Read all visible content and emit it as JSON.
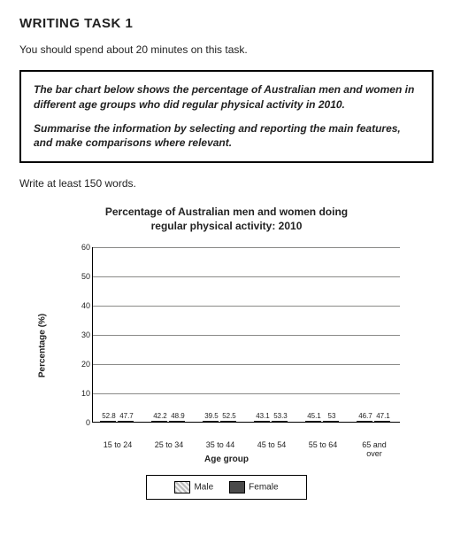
{
  "title": "WRITING TASK 1",
  "time_instruction": "You should spend about 20 minutes on this task.",
  "prompt_box": {
    "p1": "The bar chart below shows the percentage of Australian men and women in different age groups who did regular physical activity in 2010.",
    "p2": "Summarise the information by selecting and reporting the main features, and make comparisons where relevant."
  },
  "word_count": "Write at least 150 words.",
  "chart": {
    "type": "bar",
    "title_line1": "Percentage of Australian men and women doing",
    "title_line2": "regular physical activity: 2010",
    "y_axis_label": "Percentage (%)",
    "x_axis_label": "Age group",
    "ylim": [
      0,
      60
    ],
    "ytick_step": 10,
    "grid_color": "#8a8a88",
    "background_color": "#ffffff",
    "male_fill": "hatched-light-grey",
    "female_fill": "#4a4a4a",
    "categories": [
      "15 to 24",
      "25 to 34",
      "35 to 44",
      "45 to 54",
      "55 to 64",
      "65 and over"
    ],
    "series": {
      "male": [
        52.8,
        42.2,
        39.5,
        43.1,
        45.1,
        46.7
      ],
      "female": [
        47.7,
        48.9,
        52.5,
        53.3,
        53.0,
        47.1
      ]
    },
    "legend": {
      "male": "Male",
      "female": "Female"
    }
  }
}
